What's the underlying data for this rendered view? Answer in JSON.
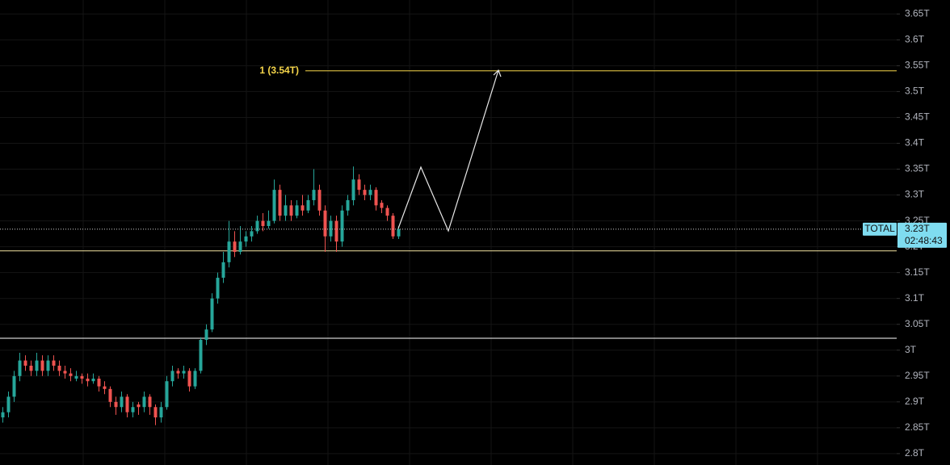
{
  "chart_data": {
    "type": "candlestick",
    "up_color": "#26a69a",
    "down_color": "#ef5350",
    "ylim": [
      2.778,
      3.677
    ],
    "yticks": [
      {
        "value": 2.8,
        "label": "2.8T"
      },
      {
        "value": 2.85,
        "label": "2.85T"
      },
      {
        "value": 2.9,
        "label": "2.9T"
      },
      {
        "value": 2.95,
        "label": "2.95T"
      },
      {
        "value": 3,
        "label": "3T"
      },
      {
        "value": 3.05,
        "label": "3.05T"
      },
      {
        "value": 3.1,
        "label": "3.1T"
      },
      {
        "value": 3.15,
        "label": "3.15T"
      },
      {
        "value": 3.2,
        "label": "3.2T"
      },
      {
        "value": 3.25,
        "label": "3.25T"
      },
      {
        "value": 3.3,
        "label": "3.3T"
      },
      {
        "value": 3.35,
        "label": "3.35T"
      },
      {
        "value": 3.4,
        "label": "3.4T"
      },
      {
        "value": 3.45,
        "label": "3.45T"
      },
      {
        "value": 3.5,
        "label": "3.5T"
      },
      {
        "value": 3.55,
        "label": "3.55T"
      },
      {
        "value": 3.6,
        "label": "3.6T"
      },
      {
        "value": 3.65,
        "label": "3.65T"
      }
    ],
    "grid": true,
    "open": [
      2.87,
      2.88,
      2.91,
      2.95,
      2.98,
      2.97,
      2.96,
      2.98,
      2.96,
      2.98,
      2.97,
      2.96,
      2.955,
      2.945,
      2.95,
      2.945,
      2.94,
      2.945,
      2.93,
      2.925,
      2.9,
      2.89,
      2.91,
      2.88,
      2.895,
      2.89,
      2.91,
      2.89,
      2.87,
      2.89,
      2.94,
      2.96,
      2.955,
      2.96,
      2.93,
      2.96,
      3.02,
      3.04,
      3.1,
      3.14,
      3.17,
      3.21,
      3.19,
      3.21,
      3.22,
      3.23,
      3.25,
      3.24,
      3.25,
      3.31,
      3.26,
      3.28,
      3.26,
      3.28,
      3.27,
      3.29,
      3.31,
      3.27,
      3.22,
      3.25,
      3.21,
      3.27,
      3.29,
      3.33,
      3.31,
      3.3,
      3.31,
      3.285,
      3.275,
      3.26,
      3.22
    ],
    "high": [
      2.89,
      2.92,
      2.96,
      2.995,
      2.99,
      2.98,
      2.995,
      2.99,
      2.99,
      2.99,
      2.98,
      2.97,
      2.965,
      2.96,
      2.955,
      2.955,
      2.955,
      2.95,
      2.94,
      2.93,
      2.91,
      2.92,
      2.915,
      2.9,
      2.9,
      2.92,
      2.915,
      2.895,
      2.9,
      2.95,
      2.97,
      2.965,
      2.97,
      2.965,
      2.965,
      3.025,
      3.05,
      3.11,
      3.15,
      3.19,
      3.25,
      3.23,
      3.24,
      3.23,
      3.24,
      3.26,
      3.265,
      3.27,
      3.33,
      3.32,
      3.3,
      3.29,
      3.29,
      3.3,
      3.3,
      3.35,
      3.32,
      3.28,
      3.26,
      3.26,
      3.28,
      3.3,
      3.355,
      3.34,
      3.32,
      3.32,
      3.315,
      3.29,
      3.28,
      3.265,
      3.24
    ],
    "low": [
      2.86,
      2.87,
      2.9,
      2.94,
      2.96,
      2.95,
      2.95,
      2.95,
      2.95,
      2.96,
      2.95,
      2.945,
      2.94,
      2.94,
      2.935,
      2.93,
      2.935,
      2.92,
      2.915,
      2.89,
      2.875,
      2.88,
      2.87,
      2.87,
      2.875,
      2.88,
      2.875,
      2.855,
      2.86,
      2.885,
      2.93,
      2.945,
      2.945,
      2.92,
      2.925,
      2.955,
      3.01,
      3.035,
      3.09,
      3.13,
      3.16,
      3.18,
      3.185,
      3.2,
      3.21,
      3.225,
      3.23,
      3.235,
      3.245,
      3.25,
      3.25,
      3.25,
      3.255,
      3.26,
      3.265,
      3.28,
      3.26,
      3.19,
      3.21,
      3.19,
      3.2,
      3.26,
      3.28,
      3.3,
      3.29,
      3.29,
      3.27,
      3.265,
      3.25,
      3.215,
      3.215
    ],
    "close": [
      2.88,
      2.91,
      2.95,
      2.98,
      2.97,
      2.96,
      2.98,
      2.96,
      2.98,
      2.97,
      2.96,
      2.955,
      2.95,
      2.95,
      2.945,
      2.94,
      2.945,
      2.93,
      2.925,
      2.9,
      2.89,
      2.91,
      2.88,
      2.89,
      2.89,
      2.91,
      2.89,
      2.87,
      2.89,
      2.94,
      2.96,
      2.955,
      2.96,
      2.93,
      2.96,
      3.02,
      3.04,
      3.1,
      3.14,
      3.17,
      3.21,
      3.19,
      3.21,
      3.22,
      3.23,
      3.25,
      3.24,
      3.25,
      3.31,
      3.26,
      3.28,
      3.26,
      3.28,
      3.27,
      3.29,
      3.31,
      3.27,
      3.22,
      3.25,
      3.21,
      3.27,
      3.29,
      3.33,
      3.31,
      3.3,
      3.31,
      3.28,
      3.275,
      3.26,
      3.22,
      3.234
    ],
    "levels": [
      {
        "value": 3.54,
        "color": "#f5d54a",
        "label": "1 (3.54T)"
      },
      {
        "value": 3.192,
        "color": "#f3e3a0"
      },
      {
        "value": 3.023,
        "color": "#ffffff"
      }
    ],
    "last_price": {
      "value": 3.234,
      "symbol": "TOTAL",
      "label": "3.23T",
      "countdown": "02:48:43",
      "color": "#7fdcf0"
    }
  }
}
